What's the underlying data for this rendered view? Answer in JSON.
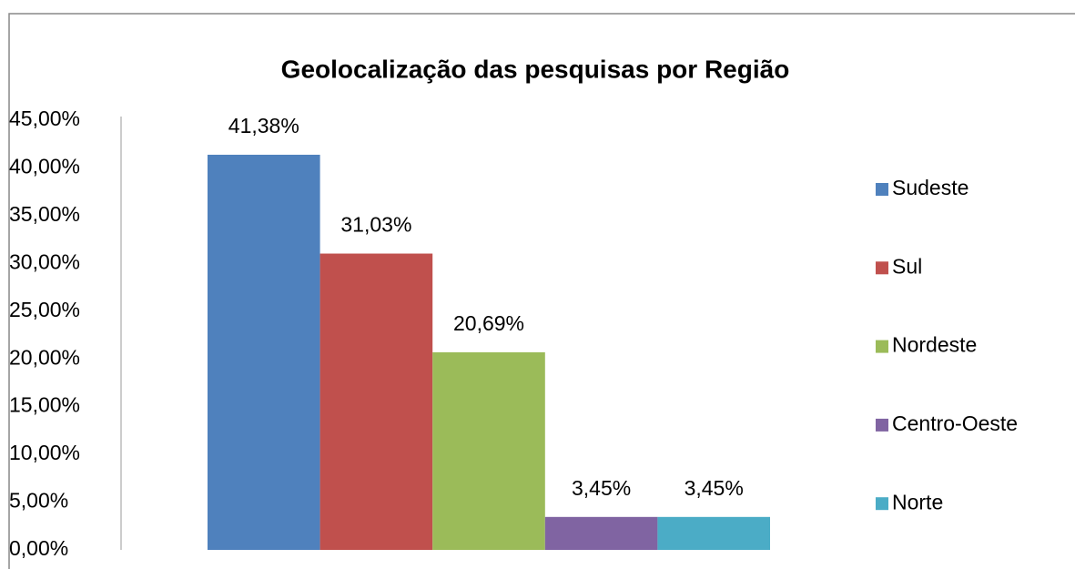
{
  "chart_data": {
    "type": "bar",
    "title": "Geolocalização das pesquisas por Região",
    "ylim": [
      0,
      45
    ],
    "yticks": [
      {
        "value": 0,
        "label": "0,00%"
      },
      {
        "value": 5,
        "label": "5,00%"
      },
      {
        "value": 10,
        "label": "10,00%"
      },
      {
        "value": 15,
        "label": "15,00%"
      },
      {
        "value": 20,
        "label": "20,00%"
      },
      {
        "value": 25,
        "label": "25,00%"
      },
      {
        "value": 30,
        "label": "30,00%"
      },
      {
        "value": 35,
        "label": "35,00%"
      },
      {
        "value": 40,
        "label": "40,00%"
      },
      {
        "value": 45,
        "label": "45,00%"
      }
    ],
    "grid": false,
    "legend": "right",
    "series": [
      {
        "name": "Sudeste",
        "color": "#4f81bd",
        "values": [
          41.38
        ],
        "value_labels": [
          "41,38%"
        ]
      },
      {
        "name": "Sul",
        "color": "#c0504d",
        "values": [
          31.03
        ],
        "value_labels": [
          "31,03%"
        ]
      },
      {
        "name": "Nordeste",
        "color": "#9bbb59",
        "values": [
          20.69
        ],
        "value_labels": [
          "20,69%"
        ]
      },
      {
        "name": "Centro-Oeste",
        "color": "#8064a2",
        "values": [
          3.45
        ],
        "value_labels": [
          "3,45%"
        ]
      },
      {
        "name": "Norte",
        "color": "#4bacc6",
        "values": [
          3.45
        ],
        "value_labels": [
          "3,45%"
        ]
      }
    ]
  }
}
